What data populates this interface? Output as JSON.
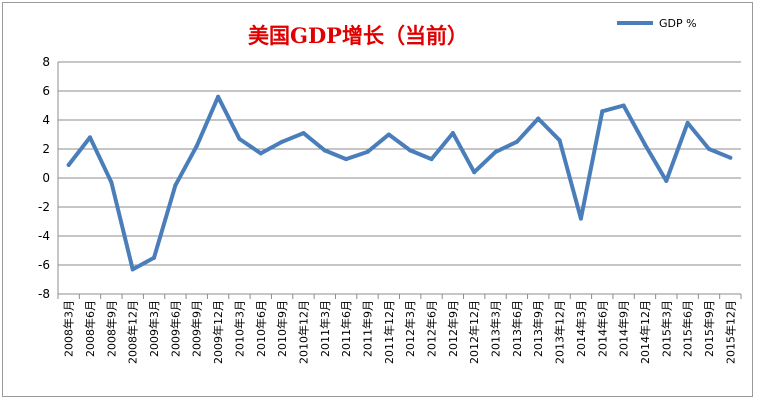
{
  "chart_data": {
    "type": "line",
    "title": "美国GDP增长（当前）",
    "xlabel": "",
    "ylabel": "",
    "categories": [
      "2008年3月",
      "2008年6月",
      "2008年9月",
      "2008年12月",
      "2009年3月",
      "2009年6月",
      "2009年9月",
      "2009年12月",
      "2010年3月",
      "2010年6月",
      "2010年9月",
      "2010年12月",
      "2011年3月",
      "2011年6月",
      "2011年9月",
      "2011年12月",
      "2012年3月",
      "2012年6月",
      "2012年9月",
      "2012年12月",
      "2013年3月",
      "2013年6月",
      "2013年9月",
      "2013年12月",
      "2014年3月",
      "2014年6月",
      "2014年9月",
      "2014年12月",
      "2015年3月",
      "2015年6月",
      "2015年9月",
      "2015年12月"
    ],
    "series": [
      {
        "name": "GDP %",
        "color": "#4a7ebb",
        "values": [
          0.9,
          2.8,
          -0.3,
          -6.3,
          -5.5,
          -0.5,
          2.2,
          5.6,
          2.7,
          1.7,
          2.5,
          3.1,
          1.9,
          1.3,
          1.8,
          3.0,
          1.9,
          1.3,
          3.1,
          0.4,
          1.8,
          2.5,
          4.1,
          2.6,
          -2.8,
          4.6,
          5.0,
          2.3,
          -0.2,
          3.8,
          2.0,
          1.4
        ]
      }
    ],
    "yticks": [
      8,
      6,
      4,
      2,
      0,
      -2,
      -4,
      -6,
      -8
    ],
    "ylim": [
      -8,
      8
    ],
    "grid": true,
    "legend": "top-right"
  }
}
